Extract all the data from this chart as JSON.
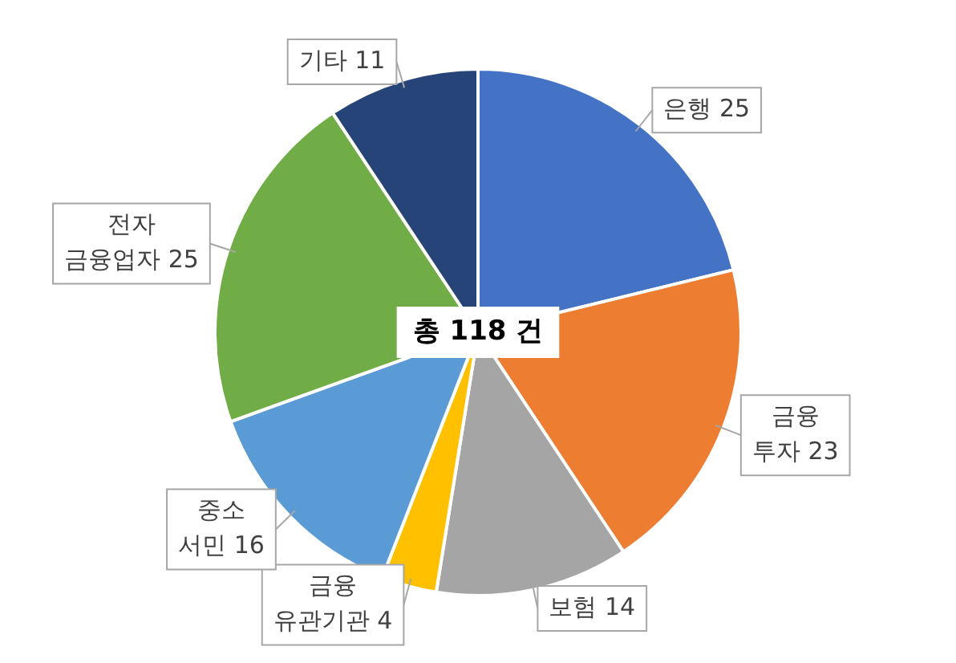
{
  "chart_data": {
    "type": "pie",
    "categories": [
      "은행 25",
      "금융 투자 23",
      "보험 14",
      "금융 유관기관 4",
      "중소 서민 16",
      "전자 금융업자 25",
      "기타 11"
    ],
    "values": [
      25,
      23,
      14,
      4,
      16,
      25,
      11
    ],
    "colors": [
      "#4472c4",
      "#ed7d31",
      "#a5a5a5",
      "#ffc000",
      "#5b9bd5",
      "#70ad47",
      "#264478"
    ],
    "legend": false,
    "annotations": [
      "총 118 건"
    ]
  }
}
